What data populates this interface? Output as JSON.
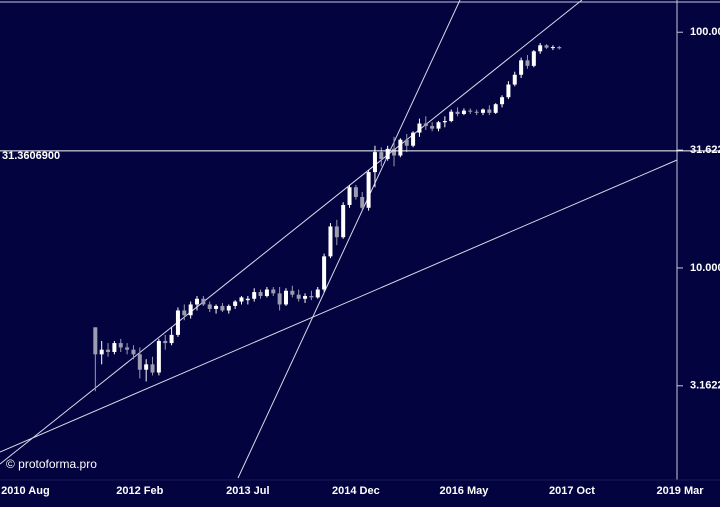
{
  "chart_data": {
    "type": "candlestick",
    "x": [
      "2011 Jul",
      "2011 Aug",
      "2011 Sep",
      "2011 Oct",
      "2011 Nov",
      "2011 Dec",
      "2012 Jan",
      "2012 Feb",
      "2012 Mar",
      "2012 Apr",
      "2012 May",
      "2012 Jun",
      "2012 Jul",
      "2012 Aug",
      "2012 Sep",
      "2012 Oct",
      "2012 Nov",
      "2012 Dec",
      "2013 Jan",
      "2013 Feb",
      "2013 Mar",
      "2013 Apr",
      "2013 May",
      "2013 Jun",
      "2013 Jul",
      "2013 Aug",
      "2013 Sep",
      "2013 Oct",
      "2013 Nov",
      "2013 Dec",
      "2014 Jan",
      "2014 Feb",
      "2014 Mar",
      "2014 Apr",
      "2014 May",
      "2014 Jun",
      "2014 Jul",
      "2014 Aug",
      "2014 Sep",
      "2014 Oct",
      "2014 Nov",
      "2014 Dec",
      "2015 Jan",
      "2015 Feb",
      "2015 Mar",
      "2015 Apr",
      "2015 May",
      "2015 Jun",
      "2015 Jul",
      "2015 Aug",
      "2015 Sep",
      "2015 Oct",
      "2015 Nov",
      "2015 Dec",
      "2016 Jan",
      "2016 Feb",
      "2016 Mar",
      "2016 Apr",
      "2016 May",
      "2016 Jun",
      "2016 Jul",
      "2016 Aug",
      "2016 Sep",
      "2016 Oct",
      "2016 Nov",
      "2016 Dec",
      "2017 Jan",
      "2017 Feb",
      "2017 Mar",
      "2017 Apr",
      "2017 May",
      "2017 Jun",
      "2017 Jul",
      "2017 Aug"
    ],
    "open": [
      5.6,
      4.3,
      4.5,
      4.4,
      4.8,
      4.6,
      4.5,
      4.3,
      3.7,
      3.9,
      3.6,
      4.9,
      4.8,
      5.2,
      6.6,
      6.3,
      7.0,
      7.4,
      7.0,
      6.7,
      6.9,
      6.6,
      6.9,
      7.2,
      7.3,
      7.4,
      7.9,
      7.6,
      8.1,
      7.8,
      7.0,
      8.0,
      7.7,
      7.4,
      7.6,
      7.5,
      8.1,
      11.2,
      15.0,
      13.5,
      18.5,
      22.0,
      20.0,
      18.0,
      25.5,
      31.0,
      29.0,
      32.0,
      30.0,
      35.0,
      33.0,
      37.5,
      41.0,
      40.0,
      39.0,
      41.5,
      42.0,
      46.0,
      45.0,
      46.5,
      46.0,
      45.5,
      47.0,
      45.5,
      49.5,
      53.0,
      60.0,
      66.0,
      76.0,
      72.0,
      83.0,
      88.0,
      86.0,
      86.5
    ],
    "high": [
      5.6,
      4.9,
      4.8,
      4.9,
      5.0,
      4.8,
      4.7,
      4.6,
      4.1,
      4.2,
      5.0,
      5.2,
      5.6,
      6.8,
      7.0,
      7.2,
      7.6,
      7.6,
      7.2,
      7.0,
      7.1,
      7.0,
      7.3,
      7.6,
      7.6,
      8.2,
      8.1,
      8.3,
      8.3,
      8.3,
      8.2,
      8.4,
      8.1,
      7.8,
      8.0,
      8.3,
      11.5,
      15.5,
      16.0,
      19.0,
      22.5,
      22.5,
      21.0,
      26.0,
      33.0,
      32.5,
      33.0,
      36.0,
      35.5,
      37.0,
      38.0,
      43.0,
      44.0,
      41.5,
      42.0,
      44.0,
      47.0,
      48.0,
      47.5,
      47.5,
      47.0,
      47.5,
      49.0,
      50.0,
      54.0,
      62.0,
      68.0,
      78.0,
      80.0,
      84.0,
      90.0,
      89.0,
      88.0,
      87.5
    ],
    "low": [
      3.0,
      3.9,
      4.2,
      4.3,
      4.4,
      4.3,
      4.1,
      3.4,
      3.3,
      3.5,
      3.5,
      4.5,
      4.7,
      5.1,
      6.0,
      6.1,
      6.6,
      6.9,
      6.5,
      6.4,
      6.5,
      6.4,
      6.7,
      7.0,
      7.0,
      7.2,
      7.4,
      7.5,
      7.6,
      6.6,
      6.9,
      7.5,
      7.2,
      7.1,
      7.3,
      7.4,
      7.9,
      11.0,
      12.5,
      13.3,
      18.0,
      19.5,
      17.5,
      17.5,
      22.0,
      27.0,
      28.5,
      27.0,
      29.5,
      31.0,
      32.5,
      36.0,
      38.5,
      38.0,
      38.0,
      39.5,
      41.5,
      44.0,
      44.5,
      45.0,
      44.5,
      44.5,
      44.5,
      45.0,
      48.0,
      52.0,
      59.0,
      64.0,
      70.0,
      71.0,
      81.0,
      85.0,
      84.0,
      84.5
    ],
    "close": [
      4.3,
      4.5,
      4.4,
      4.8,
      4.6,
      4.5,
      4.3,
      3.7,
      3.9,
      3.6,
      4.9,
      4.8,
      5.2,
      6.6,
      6.3,
      7.0,
      7.4,
      7.0,
      6.7,
      6.9,
      6.6,
      6.9,
      7.2,
      7.5,
      7.4,
      7.9,
      7.6,
      8.1,
      7.8,
      7.0,
      8.0,
      7.7,
      7.4,
      7.6,
      7.5,
      8.1,
      11.2,
      15.0,
      13.5,
      18.5,
      22.0,
      20.0,
      18.0,
      25.5,
      31.0,
      29.0,
      32.0,
      30.0,
      35.0,
      33.0,
      37.5,
      41.0,
      40.0,
      39.0,
      41.5,
      42.0,
      46.0,
      45.0,
      46.5,
      46.0,
      45.5,
      47.0,
      45.5,
      49.5,
      53.0,
      60.0,
      66.0,
      76.0,
      72.0,
      83.0,
      88.0,
      86.0,
      86.5,
      85.5
    ],
    "up_color": "#ffffff",
    "down_color": "#9c9cb0",
    "xlim": [
      "2010 Apr",
      "2019 Mar"
    ],
    "xticks": [
      "2010 Aug",
      "2012 Feb",
      "2013 Jul",
      "2014 Dec",
      "2016 May",
      "2017 Oct",
      "2019 Mar"
    ],
    "ylim": [
      1.26,
      137
    ],
    "log_scale": true,
    "yticks": [
      {
        "value": 100,
        "label": "100.00"
      },
      {
        "value": 31.622,
        "label": "31.622"
      },
      {
        "value": 10,
        "label": "10.000"
      },
      {
        "value": 3.1622,
        "label": "3.1622"
      }
    ],
    "hline": {
      "value": 31.36069,
      "label": "31.3606900"
    },
    "watermark": "© protoforma.pro"
  }
}
